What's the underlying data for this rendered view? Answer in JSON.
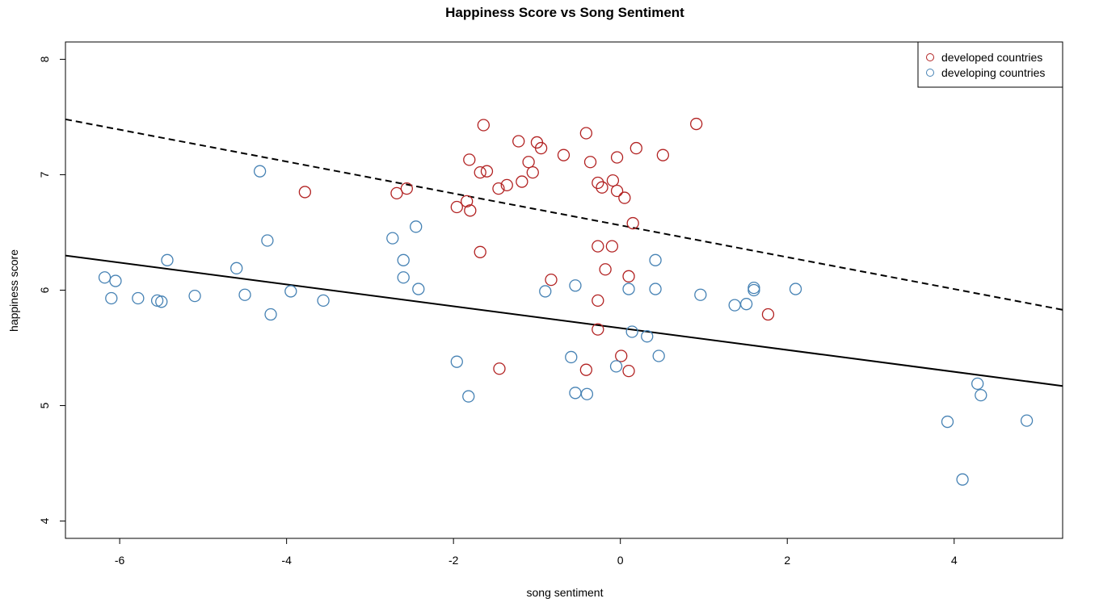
{
  "chart_data": {
    "type": "scatter",
    "title": "Happiness Score vs Song Sentiment",
    "xlabel": "song sentiment",
    "ylabel": "happiness score",
    "xlim": [
      -6.65,
      5.3
    ],
    "ylim": [
      3.85,
      8.15
    ],
    "x_ticks": [
      -6,
      -4,
      -2,
      0,
      2,
      4
    ],
    "y_ticks": [
      4,
      5,
      6,
      7,
      8
    ],
    "x_tick_labels": [
      "-6",
      "-4",
      "-2",
      "0",
      "2",
      "4"
    ],
    "y_tick_labels": [
      "4",
      "5",
      "6",
      "7",
      "8"
    ],
    "legend_position": "top-right",
    "grid": false,
    "series": [
      {
        "name": "developed countries",
        "color": "#b22222",
        "points": [
          [
            -3.78,
            6.85
          ],
          [
            -2.68,
            6.84
          ],
          [
            -2.56,
            6.88
          ],
          [
            -1.96,
            6.72
          ],
          [
            -1.84,
            6.77
          ],
          [
            -1.8,
            6.69
          ],
          [
            -1.81,
            7.13
          ],
          [
            -1.68,
            7.02
          ],
          [
            -1.6,
            7.03
          ],
          [
            -1.64,
            7.43
          ],
          [
            -1.68,
            6.33
          ],
          [
            -1.46,
            6.88
          ],
          [
            -1.36,
            6.91
          ],
          [
            -1.22,
            7.29
          ],
          [
            -1.18,
            6.94
          ],
          [
            -1.1,
            7.11
          ],
          [
            -1.05,
            7.02
          ],
          [
            -1.0,
            7.28
          ],
          [
            -0.95,
            7.23
          ],
          [
            -0.68,
            7.17
          ],
          [
            -0.41,
            7.36
          ],
          [
            -0.36,
            7.11
          ],
          [
            -0.27,
            6.93
          ],
          [
            -0.22,
            6.89
          ],
          [
            -0.09,
            6.95
          ],
          [
            -0.04,
            7.15
          ],
          [
            -0.04,
            6.86
          ],
          [
            0.05,
            6.8
          ],
          [
            0.15,
            6.58
          ],
          [
            0.19,
            7.23
          ],
          [
            0.51,
            7.17
          ],
          [
            0.91,
            7.44
          ],
          [
            -0.1,
            6.38
          ],
          [
            -0.27,
            6.38
          ],
          [
            -0.18,
            6.18
          ],
          [
            0.1,
            6.12
          ],
          [
            -0.83,
            6.09
          ],
          [
            -0.27,
            5.91
          ],
          [
            -0.27,
            5.66
          ],
          [
            0.01,
            5.43
          ],
          [
            -0.41,
            5.31
          ],
          [
            0.1,
            5.3
          ],
          [
            -1.45,
            5.32
          ],
          [
            1.77,
            5.79
          ]
        ]
      },
      {
        "name": "developing countries",
        "color": "#4682b4",
        "points": [
          [
            -6.18,
            6.11
          ],
          [
            -6.05,
            6.08
          ],
          [
            -6.1,
            5.93
          ],
          [
            -5.78,
            5.93
          ],
          [
            -5.55,
            5.91
          ],
          [
            -5.5,
            5.9
          ],
          [
            -5.43,
            6.26
          ],
          [
            -5.1,
            5.95
          ],
          [
            -4.6,
            6.19
          ],
          [
            -4.5,
            5.96
          ],
          [
            -4.32,
            7.03
          ],
          [
            -4.23,
            6.43
          ],
          [
            -4.19,
            5.79
          ],
          [
            -3.95,
            5.99
          ],
          [
            -3.56,
            5.91
          ],
          [
            -2.73,
            6.45
          ],
          [
            -2.6,
            6.26
          ],
          [
            -2.6,
            6.11
          ],
          [
            -2.45,
            6.55
          ],
          [
            -2.42,
            6.01
          ],
          [
            -1.96,
            5.38
          ],
          [
            -1.82,
            5.08
          ],
          [
            -0.9,
            5.99
          ],
          [
            -0.54,
            6.04
          ],
          [
            -0.59,
            5.42
          ],
          [
            -0.54,
            5.11
          ],
          [
            -0.4,
            5.1
          ],
          [
            -0.05,
            5.34
          ],
          [
            0.1,
            6.01
          ],
          [
            0.14,
            5.64
          ],
          [
            0.32,
            5.6
          ],
          [
            0.42,
            6.26
          ],
          [
            0.42,
            6.01
          ],
          [
            0.46,
            5.43
          ],
          [
            0.96,
            5.96
          ],
          [
            1.37,
            5.87
          ],
          [
            1.51,
            5.88
          ],
          [
            1.6,
            6.02
          ],
          [
            1.6,
            6.0
          ],
          [
            2.1,
            6.01
          ],
          [
            3.92,
            4.86
          ],
          [
            4.1,
            4.36
          ],
          [
            4.28,
            5.19
          ],
          [
            4.32,
            5.09
          ],
          [
            4.87,
            4.87
          ]
        ]
      }
    ],
    "lines": [
      {
        "name": "developed fit",
        "style": "dashed",
        "color": "#000000",
        "x": [
          -6.65,
          5.3
        ],
        "y": [
          7.48,
          5.83
        ]
      },
      {
        "name": "developing fit",
        "style": "solid",
        "color": "#000000",
        "x": [
          -6.65,
          5.3
        ],
        "y": [
          6.3,
          5.17
        ]
      }
    ]
  }
}
